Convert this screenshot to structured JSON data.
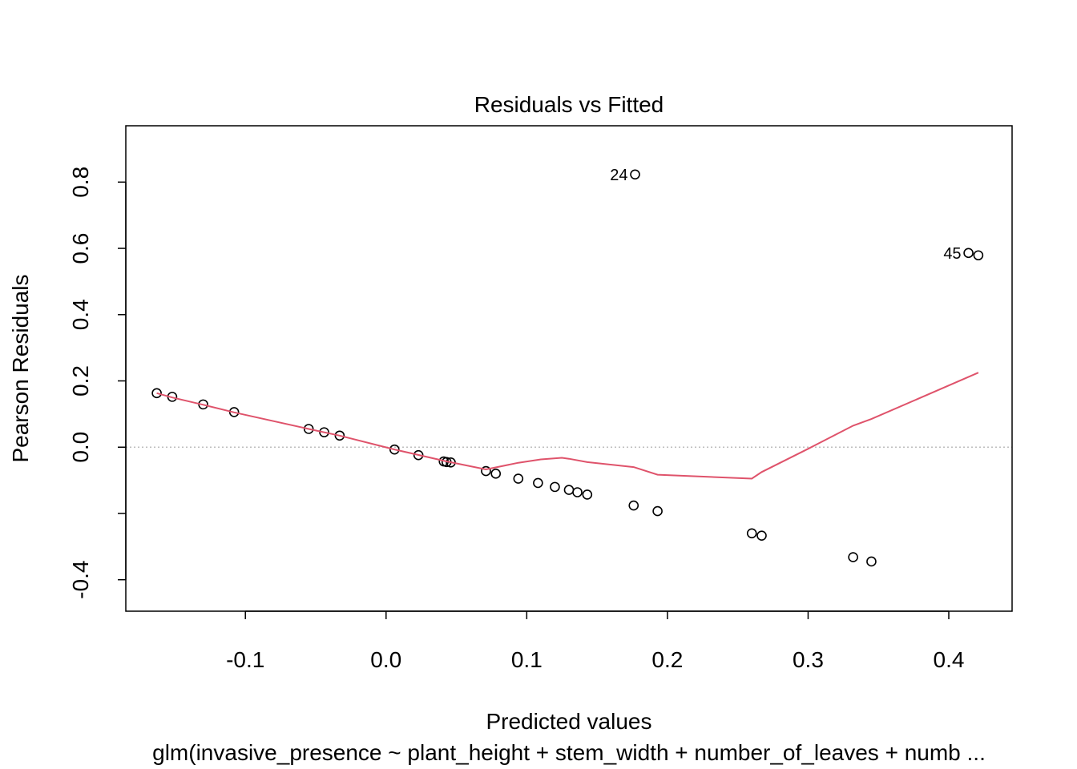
{
  "chart_data": {
    "type": "scatter",
    "title": "Residuals vs Fitted",
    "xlabel": "Predicted values",
    "ylabel": "Pearson Residuals",
    "subtitle": "glm(invasive_presence ~ plant_height + stem_width + number_of_leaves + numb ...",
    "xlim": [
      -0.185,
      0.445
    ],
    "ylim": [
      -0.495,
      0.97
    ],
    "x_ticks": [
      {
        "value": -0.1,
        "label": "-0.1"
      },
      {
        "value": 0.0,
        "label": "0.0"
      },
      {
        "value": 0.1,
        "label": "0.1"
      },
      {
        "value": 0.2,
        "label": "0.2"
      },
      {
        "value": 0.3,
        "label": "0.3"
      },
      {
        "value": 0.4,
        "label": "0.4"
      }
    ],
    "y_ticks": [
      {
        "value": -0.4,
        "label": "-0.4"
      },
      {
        "value": -0.2,
        "label": ""
      },
      {
        "value": 0.0,
        "label": "0.0"
      },
      {
        "value": 0.2,
        "label": "0.2"
      },
      {
        "value": 0.4,
        "label": "0.4"
      },
      {
        "value": 0.6,
        "label": "0.6"
      },
      {
        "value": 0.8,
        "label": "0.8"
      }
    ],
    "reference_line": {
      "y": 0.0,
      "style": "dotted",
      "color": "#bebebe"
    },
    "points": {
      "x": [
        -0.163,
        -0.152,
        -0.13,
        -0.108,
        -0.055,
        -0.044,
        -0.033,
        0.006,
        0.023,
        0.041,
        0.043,
        0.046,
        0.071,
        0.078,
        0.094,
        0.108,
        0.12,
        0.13,
        0.136,
        0.143,
        0.176,
        0.193,
        0.26,
        0.267,
        0.332,
        0.345,
        0.414,
        0.421,
        0.177
      ],
      "y": [
        0.163,
        0.152,
        0.129,
        0.106,
        0.055,
        0.045,
        0.035,
        -0.007,
        -0.024,
        -0.043,
        -0.045,
        -0.046,
        -0.072,
        -0.08,
        -0.095,
        -0.108,
        -0.12,
        -0.129,
        -0.136,
        -0.143,
        -0.176,
        -0.193,
        -0.26,
        -0.267,
        -0.332,
        -0.345,
        0.586,
        0.579,
        0.823
      ],
      "color": "#000000"
    },
    "point_labels": [
      {
        "text": "24",
        "x": 0.177,
        "y": 0.823,
        "side": "left"
      },
      {
        "text": "45",
        "x": 0.414,
        "y": 0.586,
        "side": "left"
      }
    ],
    "smooth_line": {
      "color": "#DF536B",
      "x": [
        -0.163,
        -0.152,
        -0.13,
        -0.108,
        -0.055,
        -0.033,
        0.006,
        0.043,
        0.071,
        0.094,
        0.11,
        0.125,
        0.13,
        0.143,
        0.176,
        0.193,
        0.26,
        0.267,
        0.3,
        0.332,
        0.345,
        0.421
      ],
      "y": [
        0.163,
        0.15,
        0.128,
        0.105,
        0.055,
        0.035,
        -0.007,
        -0.043,
        -0.067,
        -0.047,
        -0.037,
        -0.032,
        -0.035,
        -0.045,
        -0.06,
        -0.083,
        -0.095,
        -0.075,
        -0.005,
        0.065,
        0.085,
        0.225
      ]
    }
  }
}
